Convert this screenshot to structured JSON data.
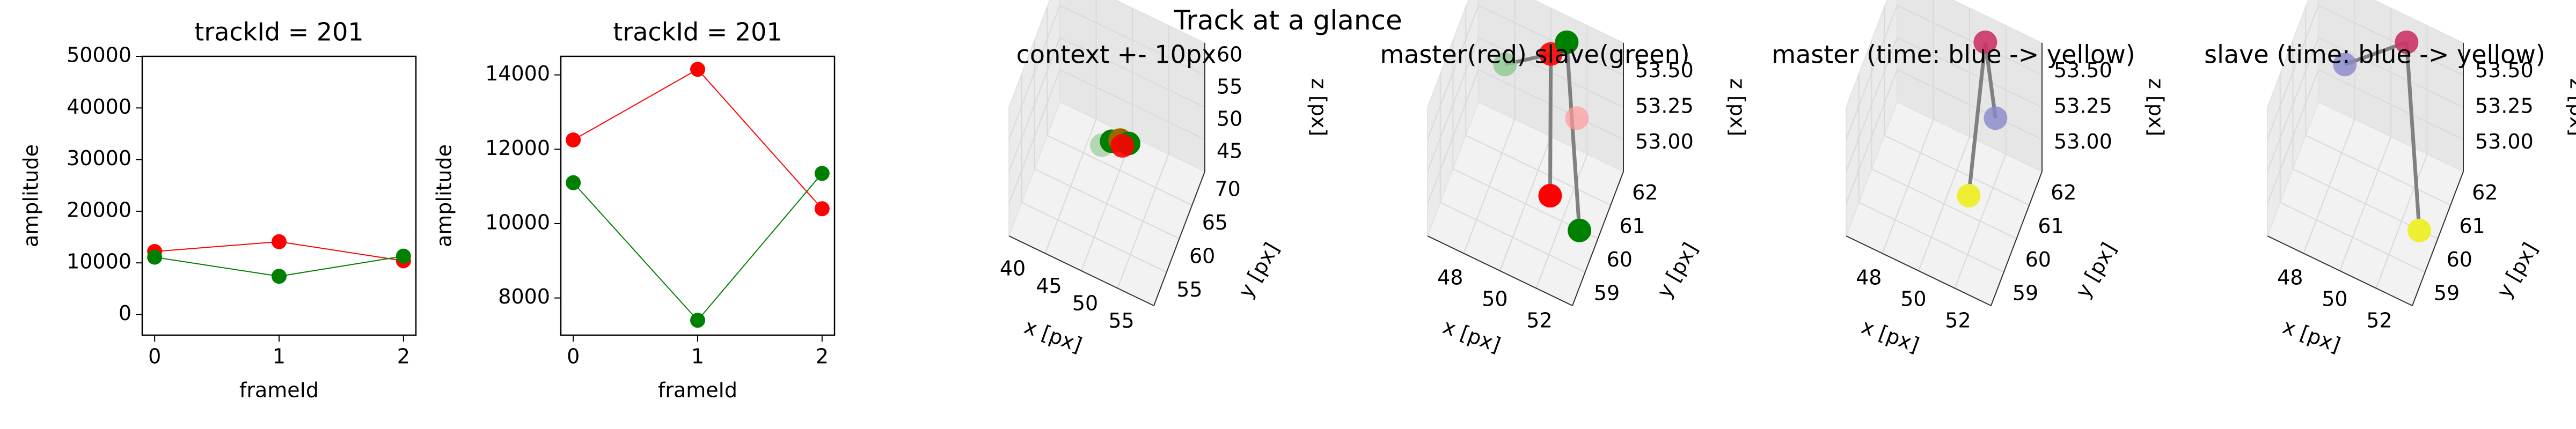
{
  "figure": {
    "suptitle": "Track at a glance"
  },
  "colors": {
    "master": "#ff0000",
    "slave": "#008000",
    "time_start": "#4b4bbb",
    "time_end": "#ffff33",
    "connector": "#808080",
    "pane": "#f2f2f2",
    "grid": "#d9d9d9"
  },
  "chart_data": [
    {
      "type": "line",
      "title": "trackId = 201",
      "xlabel": "frameId",
      "ylabel": "amplitude",
      "x": [
        0,
        1,
        2
      ],
      "xticks": [
        "0",
        "1",
        "2"
      ],
      "xlim": [
        -0.1,
        2.1
      ],
      "ylim": [
        -4000,
        50000
      ],
      "yticks": [
        "0",
        "10000",
        "20000",
        "30000",
        "40000",
        "50000"
      ],
      "series": [
        {
          "color": "#ff0000",
          "values": [
            12200,
            14100,
            10400
          ]
        },
        {
          "color": "#008000",
          "values": [
            11100,
            7400,
            11300
          ]
        }
      ]
    },
    {
      "type": "line",
      "title": "trackId = 201",
      "xlabel": "frameId",
      "ylabel": "amplitude",
      "x": [
        0,
        1,
        2
      ],
      "xticks": [
        "0",
        "1",
        "2"
      ],
      "xlim": [
        -0.1,
        2.1
      ],
      "ylim": [
        7000,
        14500
      ],
      "yticks": [
        "8000",
        "10000",
        "12000",
        "14000"
      ],
      "series": [
        {
          "color": "#ff0000",
          "values": [
            12250,
            14150,
            10400
          ]
        },
        {
          "color": "#008000",
          "values": [
            11100,
            7400,
            11350
          ]
        }
      ]
    },
    {
      "type": "scatter3d",
      "title": "context +- 10px",
      "xlabel": "x [px]",
      "ylabel": "y [px]",
      "zlabel": "z [px]",
      "xlim": [
        38,
        58
      ],
      "ylim": [
        52,
        72
      ],
      "zlim": [
        42,
        62
      ],
      "xticks": [
        "40",
        "45",
        "50",
        "55"
      ],
      "yticks": [
        "55",
        "60",
        "65",
        "70"
      ],
      "zticks": [
        "45",
        "50",
        "55",
        "60"
      ],
      "points": [
        {
          "x": 48,
          "y": 60,
          "z": 53.2,
          "color": "#99cc99",
          "alpha": 0.7
        },
        {
          "x": 49,
          "y": 61,
          "z": 53.3,
          "color": "#008000",
          "alpha": 1
        },
        {
          "x": 50,
          "y": 61.5,
          "z": 53.5,
          "color": "#996600",
          "alpha": 1
        },
        {
          "x": 51,
          "y": 62,
          "z": 53.0,
          "color": "#008000",
          "alpha": 1
        },
        {
          "x": 50.5,
          "y": 61,
          "z": 53.4,
          "color": "#ff0000",
          "alpha": 0.9
        }
      ],
      "lines": []
    },
    {
      "type": "scatter3d",
      "title": "master(red) slave(green)",
      "xlabel": "x [px]",
      "ylabel": "y [px]",
      "zlabel": "z [px]",
      "xlim": [
        46.5,
        53
      ],
      "ylim": [
        58.5,
        62.5
      ],
      "zlim": [
        52.8,
        53.7
      ],
      "xticks": [
        "48",
        "50",
        "52"
      ],
      "yticks": [
        "59",
        "60",
        "61",
        "62"
      ],
      "zticks": [
        "53.00",
        "53.25",
        "53.50"
      ],
      "points": [
        {
          "x": 48.2,
          "y": 61.6,
          "z": 53.4,
          "color": "#90c890",
          "alpha": 0.8
        },
        {
          "x": 50.2,
          "y": 61.7,
          "z": 53.6,
          "color": "#ff0000",
          "alpha": 0.9
        },
        {
          "x": 50.8,
          "y": 61.9,
          "z": 53.68,
          "color": "#008000",
          "alpha": 1
        },
        {
          "x": 51.6,
          "y": 61.3,
          "z": 53.35,
          "color": "#ff9999",
          "alpha": 0.7
        },
        {
          "x": 51.6,
          "y": 59.2,
          "z": 53.3,
          "color": "#ff0000",
          "alpha": 1
        },
        {
          "x": 52.8,
          "y": 59.4,
          "z": 53.1,
          "color": "#008000",
          "alpha": 1
        }
      ],
      "lines": [
        [
          0,
          1
        ],
        [
          1,
          4
        ],
        [
          2,
          5
        ]
      ]
    },
    {
      "type": "scatter3d",
      "title": "master (time: blue -> yellow)",
      "xlabel": "x [px]",
      "ylabel": "y [px]",
      "zlabel": "z [px]",
      "xlim": [
        46.5,
        53
      ],
      "ylim": [
        58.5,
        62.5
      ],
      "zlim": [
        52.8,
        53.7
      ],
      "xticks": [
        "48",
        "50",
        "52"
      ],
      "yticks": [
        "59",
        "60",
        "61",
        "62"
      ],
      "zticks": [
        "53.00",
        "53.25",
        "53.50"
      ],
      "points": [
        {
          "x": 50.8,
          "y": 61.9,
          "z": 53.68,
          "color": "#cc3366",
          "alpha": 0.9
        },
        {
          "x": 51.6,
          "y": 61.3,
          "z": 53.35,
          "color": "#8888cc",
          "alpha": 0.8
        },
        {
          "x": 51.6,
          "y": 59.2,
          "z": 53.3,
          "color": "#eeee33",
          "alpha": 1
        }
      ],
      "lines": [
        [
          0,
          1
        ],
        [
          0,
          2
        ]
      ]
    },
    {
      "type": "scatter3d",
      "title": "slave (time: blue -> yellow)",
      "xlabel": "x [px]",
      "ylabel": "y [px]",
      "zlabel": "z [px]",
      "xlim": [
        46.5,
        53
      ],
      "ylim": [
        58.5,
        62.5
      ],
      "zlim": [
        52.8,
        53.7
      ],
      "xticks": [
        "48",
        "50",
        "52"
      ],
      "yticks": [
        "59",
        "60",
        "61",
        "62"
      ],
      "zticks": [
        "53.00",
        "53.25",
        "53.50"
      ],
      "points": [
        {
          "x": 48.2,
          "y": 61.6,
          "z": 53.4,
          "color": "#8888cc",
          "alpha": 0.8
        },
        {
          "x": 50.8,
          "y": 61.9,
          "z": 53.68,
          "color": "#cc3366",
          "alpha": 0.9
        },
        {
          "x": 52.8,
          "y": 59.4,
          "z": 53.1,
          "color": "#eeee33",
          "alpha": 1
        }
      ],
      "lines": [
        [
          0,
          1
        ],
        [
          1,
          2
        ]
      ]
    }
  ]
}
